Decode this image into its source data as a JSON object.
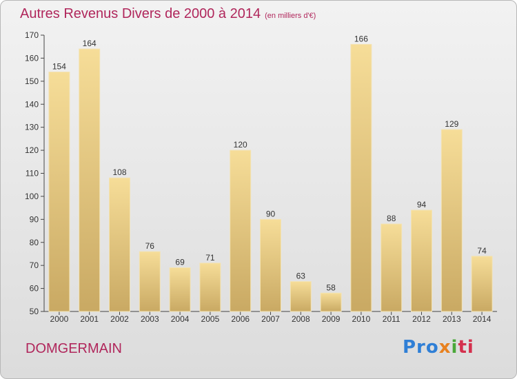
{
  "title": {
    "main": "Autres Revenus Divers de 2000 à 2014",
    "unit": "(en milliers d'€)"
  },
  "commune": "DOMGERMAIN",
  "logo": {
    "text": "Proxiti",
    "parts": [
      "Pro",
      "x",
      "i",
      "ti"
    ]
  },
  "colors": {
    "title": "#b0265b",
    "bar_top": "#f6dd98",
    "bar_bottom": "#c9a963",
    "axis": "#444444"
  },
  "chart_data": {
    "type": "bar",
    "title": "Autres Revenus Divers de 2000 à 2014",
    "subtitle": "(en milliers d'€)",
    "categories": [
      "2000",
      "2001",
      "2002",
      "2003",
      "2004",
      "2005",
      "2006",
      "2007",
      "2008",
      "2009",
      "2010",
      "2011",
      "2012",
      "2013",
      "2014"
    ],
    "values": [
      154,
      164,
      108,
      76,
      69,
      71,
      120,
      90,
      63,
      58,
      166,
      88,
      94,
      129,
      74
    ],
    "ylim": [
      50,
      170
    ],
    "yticks": [
      50,
      60,
      70,
      80,
      90,
      100,
      110,
      120,
      130,
      140,
      150,
      160,
      170
    ],
    "grid": false,
    "legend": "none",
    "data_labels": true
  }
}
